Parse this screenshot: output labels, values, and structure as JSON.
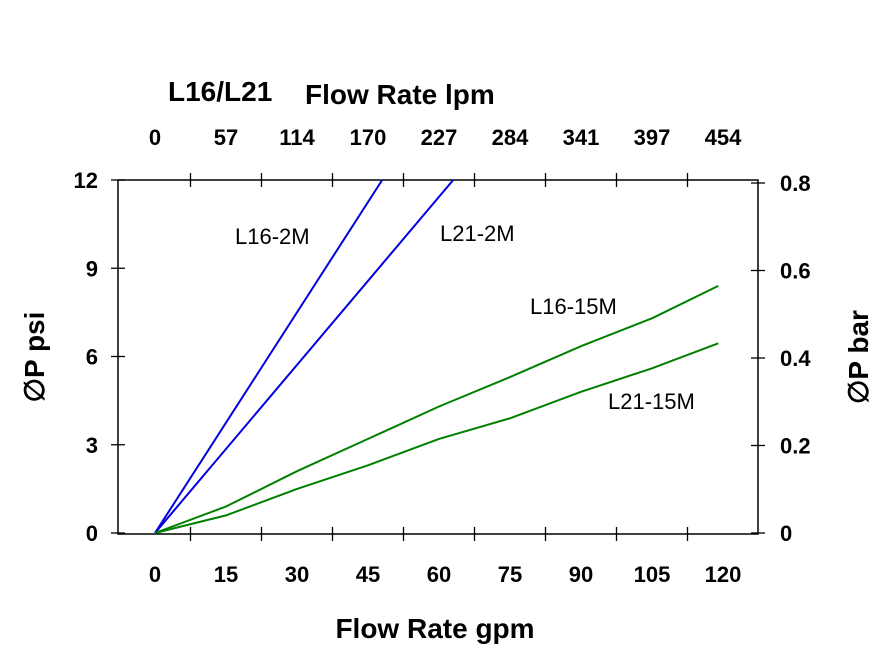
{
  "chart_data": {
    "type": "line",
    "top_title_prefix": "L16/L21",
    "top_title": "Flow Rate lpm",
    "xlabel": "Flow Rate gpm",
    "ylabel": "∅P psi",
    "y2label": "∅P bar",
    "xlim": [
      0,
      120
    ],
    "ylim": [
      0,
      12
    ],
    "y2lim": [
      0,
      0.8
    ],
    "x_ticks": [
      "0",
      "15",
      "30",
      "45",
      "60",
      "75",
      "90",
      "105",
      "120"
    ],
    "x_top_ticks": [
      "0",
      "57",
      "114",
      "170",
      "227",
      "284",
      "341",
      "397",
      "454"
    ],
    "y_ticks": [
      "0",
      "3",
      "6",
      "9",
      "12"
    ],
    "y2_ticks": [
      "0",
      "0.2",
      "0.4",
      "0.6",
      "0.8"
    ],
    "grid": false,
    "series": [
      {
        "name": "L16-2M",
        "color": "#0000e0",
        "points": [
          [
            0,
            0
          ],
          [
            48,
            12
          ]
        ]
      },
      {
        "name": "L21-2M",
        "color": "#0000e0",
        "points": [
          [
            0,
            0
          ],
          [
            63,
            12
          ]
        ]
      },
      {
        "name": "L16-15M",
        "color": "#008000",
        "points": [
          [
            0,
            0
          ],
          [
            15,
            0.9
          ],
          [
            30,
            2.1
          ],
          [
            45,
            3.2
          ],
          [
            60,
            4.3
          ],
          [
            75,
            5.3
          ],
          [
            90,
            6.35
          ],
          [
            105,
            7.3
          ],
          [
            119,
            8.4
          ]
        ]
      },
      {
        "name": "L21-15M",
        "color": "#008000",
        "points": [
          [
            0,
            0
          ],
          [
            15,
            0.6
          ],
          [
            30,
            1.5
          ],
          [
            45,
            2.3
          ],
          [
            60,
            3.2
          ],
          [
            75,
            3.9
          ],
          [
            90,
            4.8
          ],
          [
            105,
            5.6
          ],
          [
            119,
            6.45
          ]
        ]
      }
    ]
  }
}
